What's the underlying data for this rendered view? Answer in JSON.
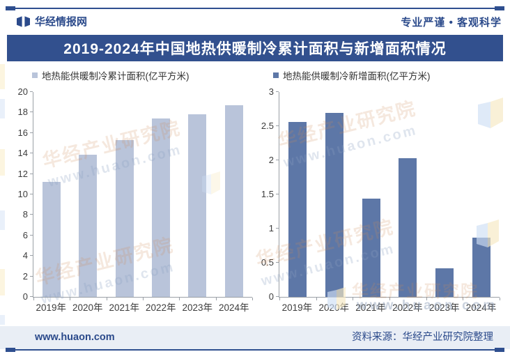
{
  "header": {
    "brand": "华经情报网",
    "slogan": "专业严谨 • 客观科学"
  },
  "title": "2019-2024年中国地热供暖制冷累计面积与新增面积情况",
  "chart_data": [
    {
      "type": "bar",
      "legend": "地热能供暖制冷累计面积(亿平方米)",
      "categories": [
        "2019年",
        "2020年",
        "2021年",
        "2022年",
        "2023年",
        "2024年"
      ],
      "values": [
        11.2,
        13.9,
        15.3,
        17.4,
        17.8,
        18.7
      ],
      "ylim": [
        0,
        20
      ],
      "ytick_step": 2,
      "bar_color": "#b9c4da",
      "grid": false,
      "legend_position": "top"
    },
    {
      "type": "bar",
      "legend": "地热能供暖制冷新增面积(亿平方米)",
      "categories": [
        "2019年",
        "2020年",
        "2021年",
        "2022年",
        "2023年",
        "2024年"
      ],
      "values": [
        2.56,
        2.69,
        1.44,
        2.03,
        0.42,
        0.87
      ],
      "ylim": [
        0,
        3
      ],
      "ytick_step": 0.5,
      "bar_color": "#5d77a7",
      "grid": false,
      "legend_position": "top"
    }
  ],
  "footer": {
    "site": "www.huaon.com",
    "source": "资料来源：华经产业研究院整理"
  },
  "watermark": {
    "cn": "华经产业研究院",
    "url": "www.huaon.com"
  },
  "colors": {
    "accent": "#2f4f8f",
    "title_bg": "#32508e",
    "cumulative_bar": "#b9c4da",
    "new_bar": "#5d77a7",
    "footer_bg": "#e9eef5"
  }
}
